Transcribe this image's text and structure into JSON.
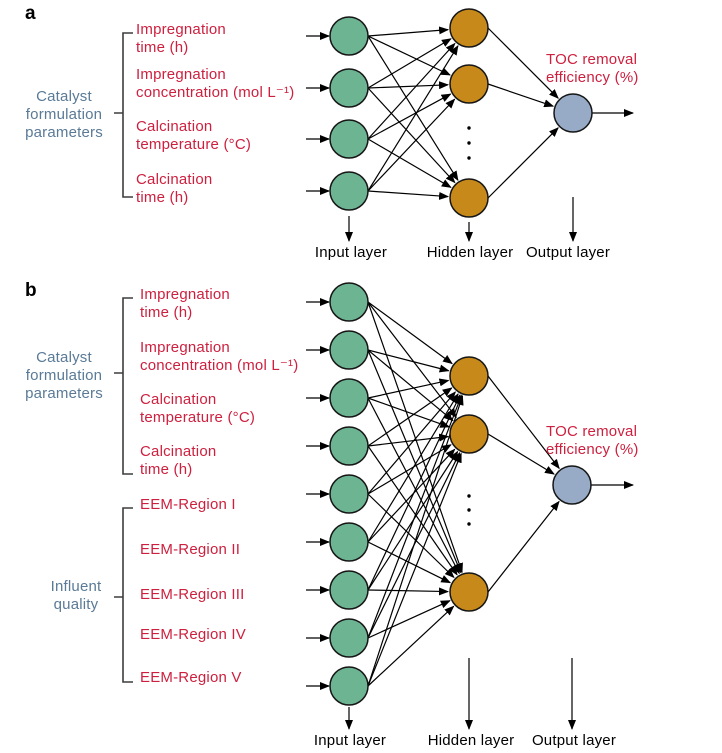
{
  "figure": {
    "panels": [
      {
        "tag": "a",
        "groups": [
          {
            "label": "Catalyst\nformulation\nparameters",
            "items": [
              "Impregnation\ntime (h)",
              "Impregnation\nconcentration (mol L⁻¹)",
              "Calcination\ntemperature (°C)",
              "Calcination\ntime (h)"
            ]
          }
        ],
        "output_annotation": "TOC removal\nefficiency (%)",
        "layer_labels": [
          "Input layer",
          "Hidden layer",
          "Output layer"
        ],
        "input_node_count": 4,
        "hidden_nodes_visible": 3,
        "hidden_layer_truncated": true,
        "output_node_count": 1
      },
      {
        "tag": "b",
        "groups": [
          {
            "label": "Catalyst\nformulation\nparameters",
            "items": [
              "Impregnation\ntime (h)",
              "Impregnation\nconcentration (mol L⁻¹)",
              "Calcination\ntemperature (°C)",
              "Calcination\ntime (h)"
            ]
          },
          {
            "label": "Influent\nquality",
            "items": [
              "EEM-Region I",
              "EEM-Region II",
              "EEM-Region III",
              "EEM-Region IV",
              "EEM-Region V"
            ]
          }
        ],
        "output_annotation": "TOC removal\nefficiency (%)",
        "layer_labels": [
          "Input layer",
          "Hidden layer",
          "Output layer"
        ],
        "input_node_count": 9,
        "hidden_nodes_visible": 3,
        "hidden_layer_truncated": true,
        "output_node_count": 1
      }
    ],
    "colors": {
      "background": "#FFFFFF",
      "input_node": "#6CB492",
      "hidden_node": "#C6891A",
      "output_node": "#97ABC6",
      "node_stroke": "#161616",
      "edge": "#000000",
      "label_red": "#CE1F3E",
      "label_blue": "#5A7A96",
      "bracket": "#3D3D3D"
    }
  }
}
